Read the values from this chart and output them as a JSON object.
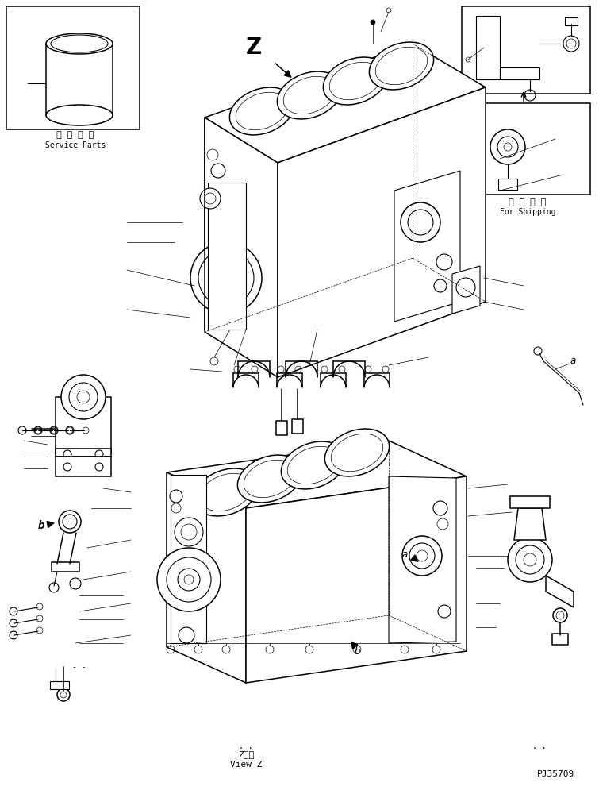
{
  "bg_color": "#ffffff",
  "line_color": "#000000",
  "title_bottom_center_ja": "Z　視",
  "title_bottom_center_en": "View Z",
  "part_number": "PJ35709",
  "service_parts_ja": "補 給 専 用",
  "service_parts_en": "Service Parts",
  "shipping_ja": "運 搜 部 品",
  "shipping_en": "For Shipping",
  "label_z": "Z",
  "label_a": "a",
  "label_b": "b",
  "fig_width": 7.55,
  "fig_height": 10.0,
  "dpi": 100
}
